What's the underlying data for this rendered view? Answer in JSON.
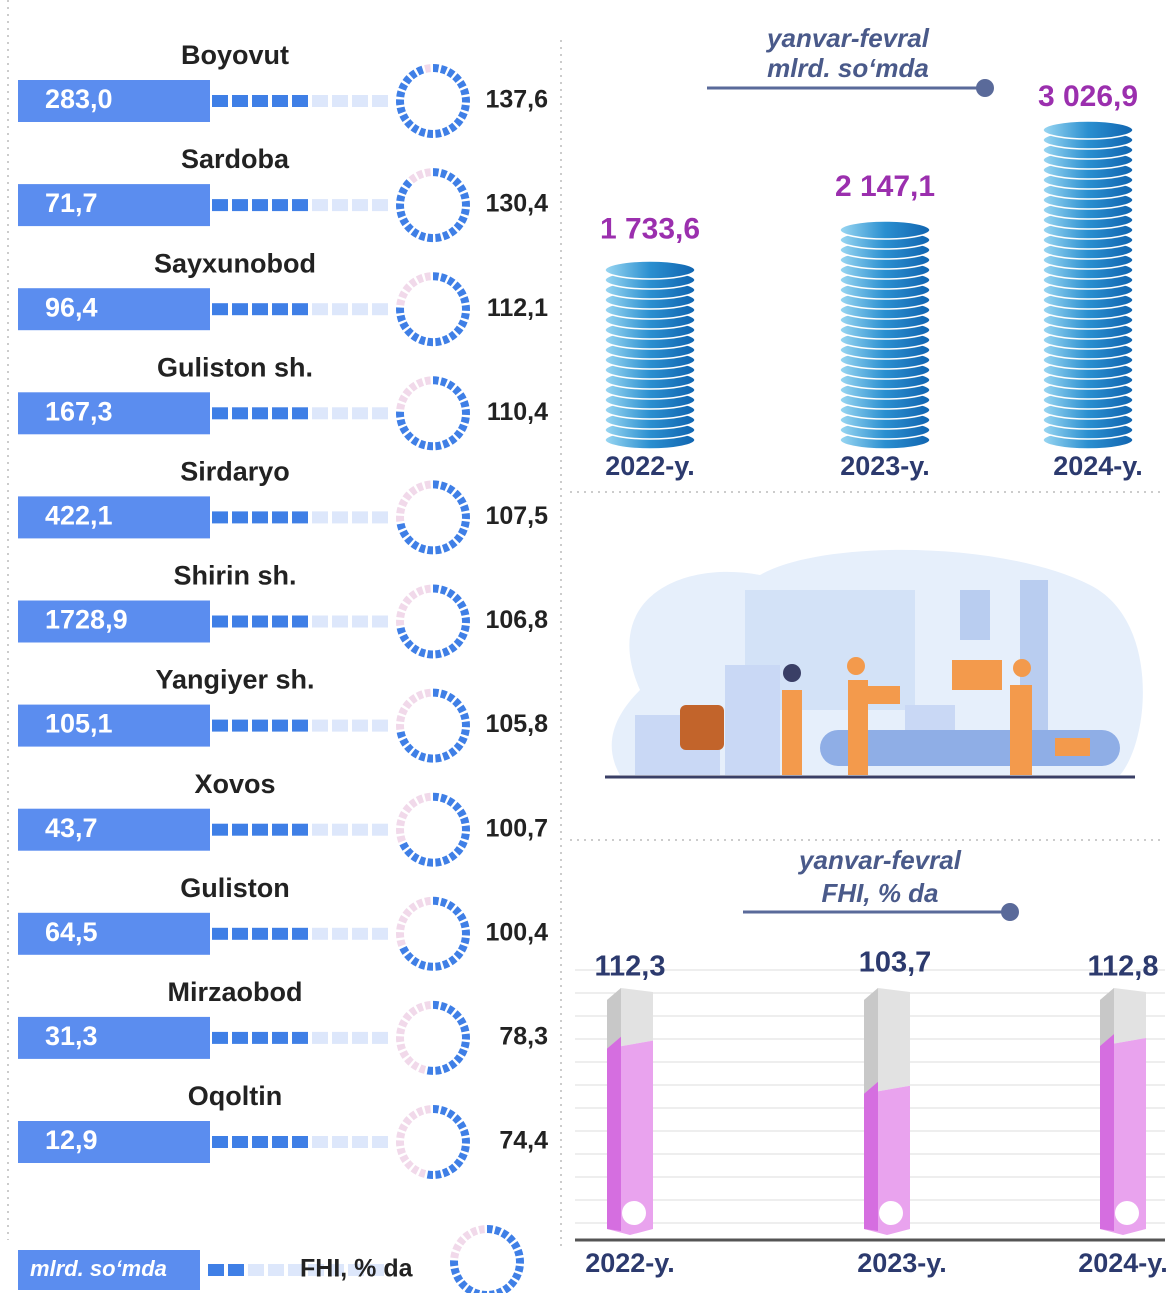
{
  "chart_data": [
    {
      "type": "districts",
      "categories": [
        "Boyovut",
        "Sardoba",
        "Sayxunobod",
        "Guliston sh.",
        "Sirdaryo",
        "Shirin sh.",
        "Yangiyer sh.",
        "Xovos",
        "Guliston",
        "Mirzaobod",
        "Oqoltin"
      ],
      "series": [
        {
          "name": "mlrd. so‘mda",
          "color": "#5b8def",
          "values": [
            283.0,
            71.7,
            96.4,
            167.3,
            422.1,
            1728.9,
            105.1,
            43.7,
            64.5,
            31.3,
            12.9
          ],
          "value_labels": [
            "283,0",
            "71,7",
            "96,4",
            "167,3",
            "422,1",
            "1728,9",
            "105,1",
            "43,7",
            "64,5",
            "31,3",
            "12,9"
          ]
        },
        {
          "name": "FHI, % da",
          "color": "#3f7fe6",
          "values": [
            137.6,
            130.4,
            112.1,
            110.4,
            107.5,
            106.8,
            105.8,
            100.7,
            100.4,
            78.3,
            74.4
          ],
          "value_labels": [
            "137,6",
            "130,4",
            "112,1",
            "110,4",
            "107,5",
            "106,8",
            "105,8",
            "100,7",
            "100,4",
            "78,3",
            "74,4"
          ]
        }
      ]
    },
    {
      "type": "coins",
      "title": "yanvar-fevral",
      "subtitle": "mlrd. so‘mda",
      "categories": [
        "2022-y.",
        "2023-y.",
        "2024-y."
      ],
      "values": [
        1733.6,
        2147.1,
        3026.9
      ],
      "value_labels": [
        "1 733,6",
        "2 147,1",
        "3 026,9"
      ],
      "color": "#2a8fd0"
    },
    {
      "type": "bar3d",
      "title": "yanvar-fevral",
      "subtitle": "FHI, % da",
      "categories": [
        "2022-y.",
        "2023-y.",
        "2024-y."
      ],
      "values": [
        112.3,
        103.7,
        112.8
      ],
      "value_labels": [
        "112,3",
        "103,7",
        "112,8"
      ],
      "color": "#e9a3ee",
      "grid": true
    }
  ]
}
